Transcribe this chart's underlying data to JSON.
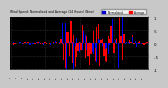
{
  "title": "Wind Speed: Normalized and Average (24 Hours) (New)",
  "background_color": "#c8c8c8",
  "plot_bg_color": "#000000",
  "grid_color": "#555555",
  "bar_color_norm": "#0000ff",
  "bar_color_avg": "#ff0000",
  "legend_labels": [
    "Normalized",
    "Average"
  ],
  "legend_colors": [
    "#0000cc",
    "#ff0000"
  ],
  "ylim": [
    -1.0,
    1.0
  ],
  "n_bars": 96,
  "seed": 42,
  "title_color": "#000000",
  "tick_color": "#000000",
  "spine_color": "#000000"
}
